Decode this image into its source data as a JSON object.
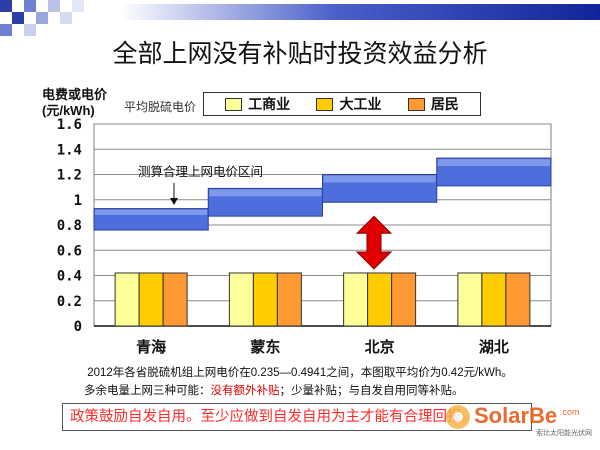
{
  "title": "全部上网没有补贴时投资效益分析",
  "y_axis_label_line1": "电费或电价",
  "y_axis_label_line2": "(元/kWh)",
  "avg_label": "平均脱硫电价",
  "range_annotation": "测算合理上网电价区间",
  "notes": {
    "line1": "2012年各省脱硫机组上网电价在0.235—0.4941之间，本图取平均价为0.42元/kWh。",
    "line2_pre": "多余电量上网三种可能：",
    "line2_red": "没有额外补贴",
    "line2_post": "；少量补贴；与自发自用同等补贴。"
  },
  "policy_text": "政策鼓励自发自用。至少应做到自发自用为主才能有合理回报。",
  "watermark": {
    "brand": "SolarBe",
    "suffix": ".com",
    "sub": "索比太阳能光伏网"
  },
  "colors": {
    "commercial": "#ffff99",
    "industrial": "#ffcc00",
    "residential": "#ff9933",
    "range_bar": "#4d6edc",
    "range_bar_top": "#93a9ef",
    "arrow": "#e00000",
    "title_bar": "#12249a"
  },
  "chart_data": {
    "type": "bar",
    "categories": [
      "青海",
      "蒙东",
      "北京",
      "湖北"
    ],
    "series": [
      {
        "name": "工商业",
        "values": [
          0.42,
          0.42,
          0.42,
          0.42
        ]
      },
      {
        "name": "大工业",
        "values": [
          0.42,
          0.42,
          0.42,
          0.42
        ]
      },
      {
        "name": "居民",
        "values": [
          0.42,
          0.42,
          0.42,
          0.42
        ]
      }
    ],
    "price_ranges": [
      {
        "category": "青海",
        "low": 0.76,
        "high": 0.93
      },
      {
        "category": "蒙东",
        "low": 0.87,
        "high": 1.09
      },
      {
        "category": "北京",
        "low": 0.98,
        "high": 1.2
      },
      {
        "category": "湖北",
        "low": 1.11,
        "high": 1.33
      }
    ],
    "yticks": [
      "0",
      "0.2",
      "0.4",
      "0.6",
      "0.8",
      "1",
      "1.2",
      "1.4",
      "1.6"
    ],
    "ylim": [
      0,
      1.6
    ],
    "grid": true,
    "legend": "top"
  }
}
